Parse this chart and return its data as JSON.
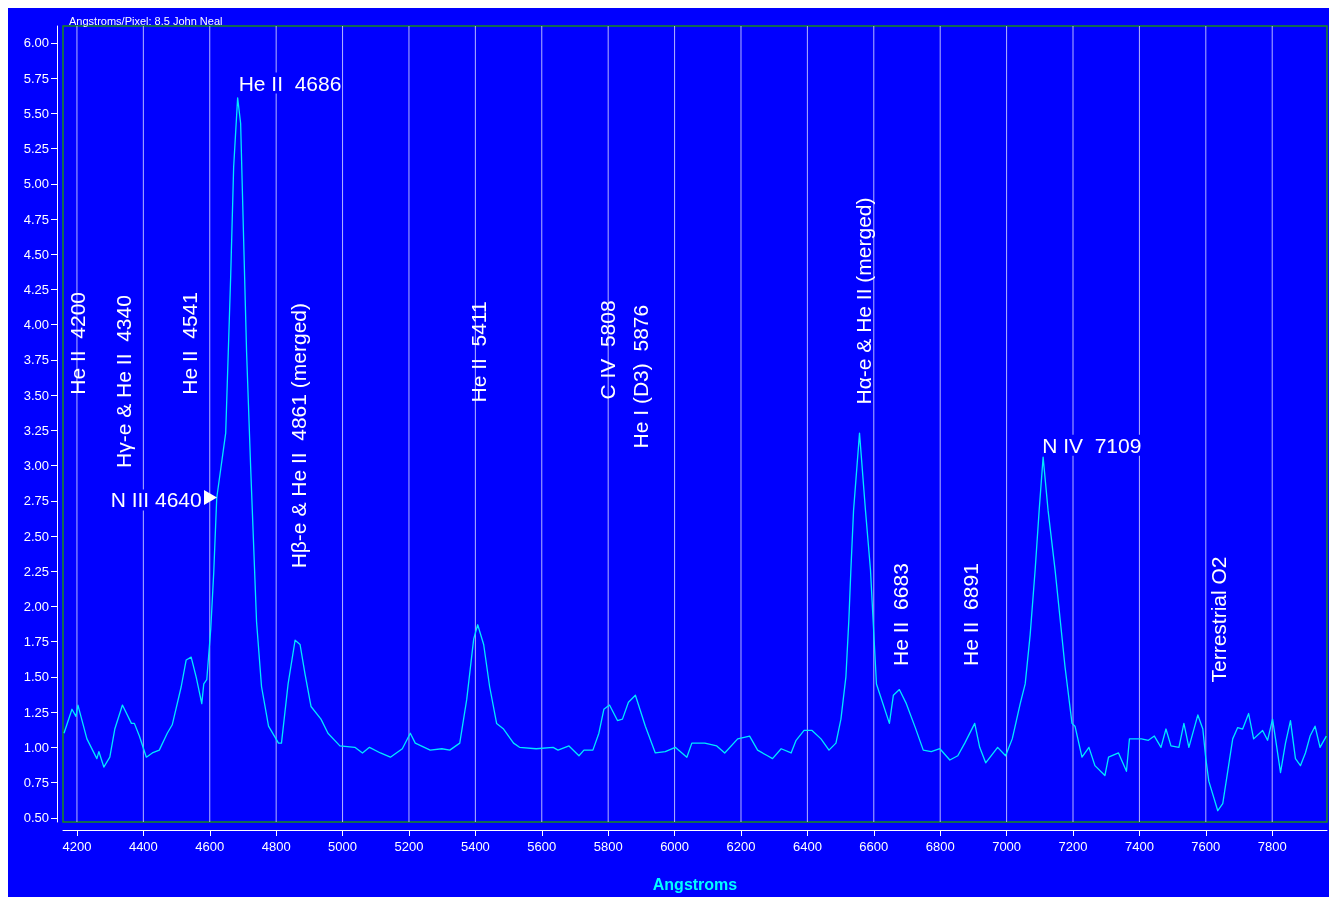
{
  "chart_data": {
    "type": "line",
    "subtitle": "Angstroms/Pixel: 8.5 John Neal",
    "xlabel": "Angstroms",
    "x": [
      4161,
      4185,
      4197,
      4203,
      4230,
      4260,
      4266,
      4281,
      4299,
      4314,
      4337,
      4364,
      4373,
      4388,
      4409,
      4427,
      4448,
      4472,
      4487,
      4514,
      4529,
      4544,
      4559,
      4576,
      4582,
      4591,
      4603,
      4612,
      4621,
      4648,
      4663,
      4672,
      4684,
      4693,
      4702,
      4711,
      4723,
      4741,
      4756,
      4777,
      4807,
      4816,
      4836,
      4857,
      4872,
      4887,
      4905,
      4935,
      4956,
      4992,
      5037,
      5060,
      5081,
      5114,
      5144,
      5180,
      5204,
      5219,
      5264,
      5299,
      5323,
      5353,
      5374,
      5395,
      5407,
      5425,
      5443,
      5464,
      5485,
      5515,
      5533,
      5583,
      5634,
      5649,
      5682,
      5712,
      5727,
      5754,
      5772,
      5787,
      5804,
      5828,
      5843,
      5861,
      5882,
      5912,
      5942,
      5972,
      6002,
      6037,
      6052,
      6091,
      6127,
      6151,
      6190,
      6226,
      6250,
      6280,
      6295,
      6321,
      6351,
      6366,
      6390,
      6414,
      6441,
      6465,
      6486,
      6501,
      6516,
      6525,
      6531,
      6539,
      6557,
      6575,
      6590,
      6608,
      6647,
      6659,
      6677,
      6698,
      6725,
      6749,
      6773,
      6799,
      6829,
      6853,
      6874,
      6904,
      6919,
      6937,
      6973,
      6997,
      7017,
      7041,
      7056,
      7071,
      7086,
      7098,
      7110,
      7125,
      7146,
      7176,
      7197,
      7206,
      7227,
      7248,
      7266,
      7296,
      7307,
      7337,
      7361,
      7370,
      7406,
      7427,
      7445,
      7465,
      7480,
      7495,
      7519,
      7534,
      7549,
      7576,
      7591,
      7600,
      7609,
      7636,
      7651,
      7666,
      7681,
      7696,
      7711,
      7729,
      7744,
      7771,
      7786,
      7801,
      7810,
      7825,
      7840,
      7855,
      7870,
      7885,
      7900,
      7914,
      7929,
      7944,
      7963
    ],
    "series": [
      {
        "color": "#00e8ff",
        "values": [
          1.1,
          1.27,
          1.22,
          1.3,
          1.06,
          0.92,
          0.97,
          0.86,
          0.93,
          1.13,
          1.3,
          1.17,
          1.17,
          1.08,
          0.93,
          0.96,
          0.98,
          1.1,
          1.16,
          1.43,
          1.62,
          1.64,
          1.5,
          1.31,
          1.45,
          1.48,
          1.84,
          2.24,
          2.77,
          3.23,
          4.34,
          5.12,
          5.61,
          5.43,
          4.61,
          3.8,
          3.0,
          1.89,
          1.43,
          1.15,
          1.03,
          1.03,
          1.45,
          1.76,
          1.73,
          1.52,
          1.29,
          1.2,
          1.1,
          1.01,
          1.0,
          0.96,
          1.0,
          0.96,
          0.93,
          0.99,
          1.1,
          1.03,
          0.98,
          0.99,
          0.98,
          1.03,
          1.34,
          1.77,
          1.87,
          1.73,
          1.43,
          1.17,
          1.13,
          1.03,
          1.0,
          0.99,
          1.0,
          0.98,
          1.01,
          0.94,
          0.98,
          0.98,
          1.1,
          1.27,
          1.3,
          1.19,
          1.2,
          1.32,
          1.37,
          1.15,
          0.96,
          0.97,
          1.0,
          0.93,
          1.03,
          1.03,
          1.01,
          0.96,
          1.06,
          1.08,
          0.98,
          0.94,
          0.92,
          0.99,
          0.96,
          1.05,
          1.12,
          1.12,
          1.06,
          0.98,
          1.03,
          1.2,
          1.5,
          1.91,
          2.26,
          2.68,
          3.23,
          2.68,
          2.26,
          1.45,
          1.17,
          1.37,
          1.41,
          1.31,
          1.14,
          0.98,
          0.97,
          0.99,
          0.91,
          0.94,
          1.03,
          1.17,
          1.0,
          0.89,
          1.0,
          0.94,
          1.06,
          1.31,
          1.45,
          1.8,
          2.26,
          2.68,
          3.06,
          2.68,
          2.26,
          1.57,
          1.17,
          1.15,
          0.93,
          1.0,
          0.87,
          0.8,
          0.93,
          0.96,
          0.83,
          1.06,
          1.06,
          1.05,
          1.08,
          1.0,
          1.13,
          1.01,
          1.0,
          1.17,
          1.0,
          1.23,
          1.13,
          0.92,
          0.76,
          0.55,
          0.6,
          0.83,
          1.06,
          1.14,
          1.13,
          1.24,
          1.06,
          1.12,
          1.05,
          1.2,
          1.06,
          0.82,
          1.03,
          1.19,
          0.92,
          0.87,
          0.96,
          1.08,
          1.15,
          1.0,
          1.08
        ]
      }
    ],
    "xlim": [
      4158,
      7965
    ],
    "ylim": [
      0.47,
      6.12
    ],
    "xticks": [
      4200,
      4400,
      4600,
      4800,
      5000,
      5200,
      5400,
      5600,
      5800,
      6000,
      6200,
      6400,
      6600,
      6800,
      7000,
      7200,
      7400,
      7600,
      7800
    ],
    "yticks": [
      {
        "value": 0.5,
        "label": "0.50"
      },
      {
        "value": 0.75,
        "label": "0.75"
      },
      {
        "value": 1,
        "label": "1.00"
      },
      {
        "value": 1.25,
        "label": "1.25"
      },
      {
        "value": 1.5,
        "label": "1.50"
      },
      {
        "value": 1.75,
        "label": "1.75"
      },
      {
        "value": 2,
        "label": "2.00"
      },
      {
        "value": 2.25,
        "label": "2.25"
      },
      {
        "value": 2.5,
        "label": "2.50"
      },
      {
        "value": 2.75,
        "label": "2.75"
      },
      {
        "value": 3,
        "label": "3.00"
      },
      {
        "value": 3.25,
        "label": "3.25"
      },
      {
        "value": 3.5,
        "label": "3.50"
      },
      {
        "value": 3.75,
        "label": "3.75"
      },
      {
        "value": 4,
        "label": "4.00"
      },
      {
        "value": 4.25,
        "label": "4.25"
      },
      {
        "value": 4.5,
        "label": "4.50"
      },
      {
        "value": 4.75,
        "label": "4.75"
      },
      {
        "value": 5,
        "label": "5.00"
      },
      {
        "value": 5.25,
        "label": "5.25"
      },
      {
        "value": 5.5,
        "label": "5.50"
      },
      {
        "value": 5.75,
        "label": "5.75"
      },
      {
        "value": 6,
        "label": "6.00"
      }
    ],
    "grid": "x",
    "marker": "none",
    "line_style": "solid",
    "annotations": [
      "He II  4200",
      "Hγ-e & He II  4340",
      "He II  4541",
      {
        "text": "He II  4686",
        "x": 4687,
        "y": 5.64
      },
      {
        "text": "N III 4640",
        "x": 4621,
        "y": 2.77
      },
      "Hβ-e & He II  4861 (merged)",
      "He II  5411",
      "C IV  5808",
      "He I (D3)  5876",
      "Hα-e & He II (merged)",
      "He II  6683",
      "He II  6891",
      {
        "text": "N IV  7109",
        "x": 7107,
        "y": 3.07
      },
      "Terrestrial O2"
    ]
  }
}
